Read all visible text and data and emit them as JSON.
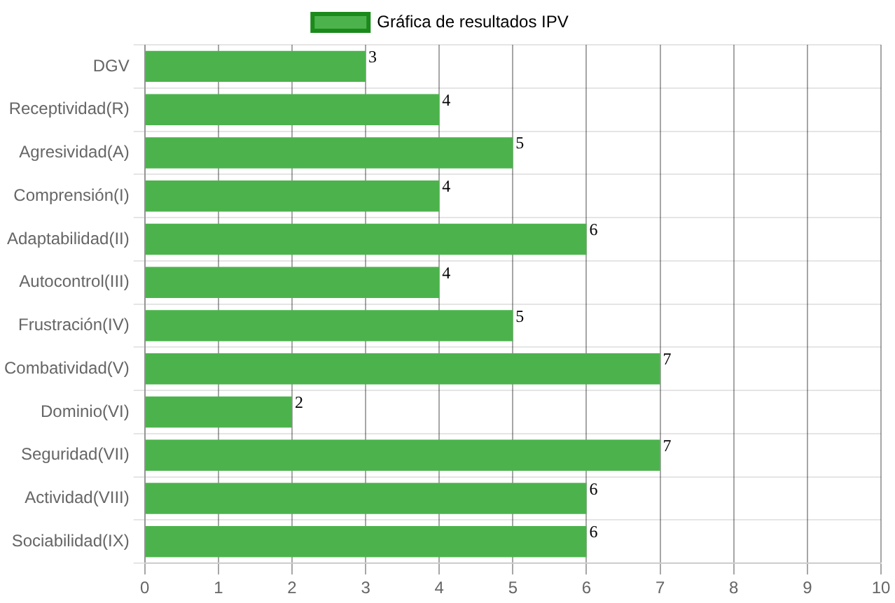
{
  "chart_data": {
    "type": "bar",
    "orientation": "horizontal",
    "categories": [
      "DGV",
      "Receptividad(R)",
      "Agresividad(A)",
      "Comprensión(I)",
      "Adaptabilidad(II)",
      "Autocontrol(III)",
      "Frustración(IV)",
      "Combatividad(V)",
      "Dominio(VI)",
      "Seguridad(VII)",
      "Actividad(VIII)",
      "Sociabilidad(IX)"
    ],
    "series": [
      {
        "name": "Gráfica de resultados IPV",
        "color": "#4cb34c",
        "values": [
          3,
          4,
          5,
          4,
          6,
          4,
          5,
          7,
          2,
          7,
          6,
          6
        ]
      }
    ],
    "xlim": [
      0,
      10
    ],
    "xticks": [
      0,
      1,
      2,
      3,
      4,
      5,
      6,
      7,
      8,
      9,
      10
    ],
    "grid": true,
    "legend": "top",
    "data_labels": true
  }
}
